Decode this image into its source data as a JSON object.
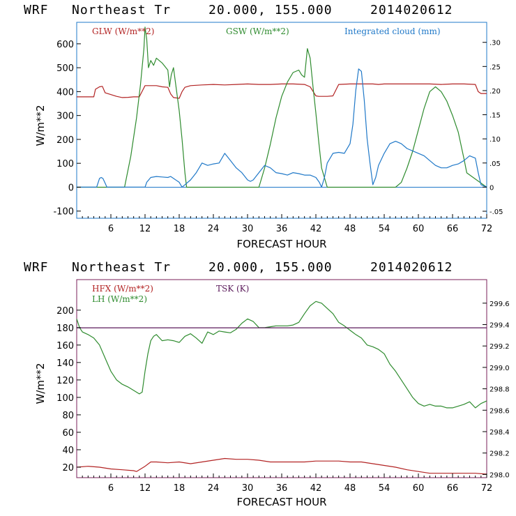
{
  "charts": [
    {
      "header": {
        "model": "WRF",
        "location": "Northeast Tr",
        "coords": "20.000, 155.000",
        "init": "2014020612"
      },
      "xlabel": "FORECAST HOUR",
      "ylabel": "W/m**2",
      "legend": [
        {
          "label": "GLW (W/m**2)",
          "color": "#b22222"
        },
        {
          "label": "GSW (W/m**2)",
          "color": "#2e8b2e"
        },
        {
          "label": "Integrated cloud (mm)",
          "color": "#1f78c8"
        }
      ],
      "y_ticks": [
        "-100",
        "0",
        "100",
        "200",
        "300",
        "400",
        "500",
        "600"
      ],
      "y2_ticks": [
        "-.05",
        "0",
        ".05",
        ".10",
        ".15",
        ".20",
        ".25",
        ".30"
      ],
      "x_ticks": [
        "6",
        "12",
        "18",
        "24",
        "30",
        "36",
        "42",
        "48",
        "54",
        "60",
        "66",
        "72"
      ]
    },
    {
      "header": {
        "model": "WRF",
        "location": "Northeast Tr",
        "coords": "20.000, 155.000",
        "init": "2014020612"
      },
      "xlabel": "FORECAST HOUR",
      "ylabel": "W/m**2",
      "legend": [
        {
          "label": "HFX (W/m**2)",
          "color": "#b22222"
        },
        {
          "label": "LH (W/m**2)",
          "color": "#2e8b2e"
        },
        {
          "label": "TSK (K)",
          "color": "#5a1a5a"
        }
      ],
      "y_ticks": [
        "20",
        "40",
        "60",
        "80",
        "100",
        "120",
        "140",
        "160",
        "180",
        "200"
      ],
      "y2_ticks": [
        "298.0",
        "298.2",
        "298.4",
        "298.6",
        "298.8",
        "299.0",
        "299.2",
        "299.4",
        "299.6"
      ],
      "x_ticks": [
        "6",
        "12",
        "18",
        "24",
        "30",
        "36",
        "42",
        "48",
        "54",
        "60",
        "66",
        "72"
      ]
    }
  ],
  "chart_data": [
    {
      "type": "line",
      "x_unit": "forecast hour",
      "xlim": [
        0,
        72
      ],
      "ylim": [
        -130,
        690
      ],
      "y2lim": [
        -0.0645,
        0.3415
      ],
      "series": [
        {
          "name": "GLW (W/m**2)",
          "axis": "left",
          "color": "#b22222",
          "x": [
            0,
            3,
            3.3,
            4,
            4.5,
            5,
            7,
            8,
            9,
            10,
            11,
            12,
            13,
            14,
            15,
            16,
            16.5,
            17,
            18,
            18.5,
            19,
            20,
            22,
            24,
            26,
            28,
            30,
            32,
            34,
            36,
            38,
            40,
            41,
            42,
            42.5,
            43,
            44,
            45,
            46,
            48,
            50,
            52,
            53,
            54,
            56,
            58,
            60,
            62,
            64,
            66,
            68,
            70,
            70.5,
            71,
            72
          ],
          "y": [
            378,
            378,
            410,
            420,
            422,
            395,
            380,
            375,
            376,
            378,
            378,
            425,
            425,
            425,
            420,
            418,
            390,
            375,
            372,
            400,
            418,
            425,
            428,
            430,
            428,
            430,
            432,
            430,
            430,
            432,
            432,
            430,
            420,
            382,
            380,
            380,
            380,
            382,
            430,
            432,
            432,
            432,
            430,
            432,
            432,
            432,
            432,
            432,
            430,
            432,
            432,
            430,
            400,
            392,
            392
          ]
        },
        {
          "name": "GSW (W/m**2)",
          "axis": "left",
          "color": "#2e8b2e",
          "x": [
            0,
            8.4,
            9.5,
            10.5,
            11.2,
            11.8,
            12,
            12.3,
            12.6,
            13,
            13.5,
            14,
            15,
            16,
            16.3,
            16.6,
            17,
            17.5,
            18,
            18.5,
            19,
            19.3,
            24,
            32,
            33,
            34,
            35,
            36,
            37,
            38,
            39,
            39.5,
            40,
            40.5,
            41,
            41.5,
            42,
            42.5,
            43,
            44,
            56,
            57,
            58,
            59,
            60,
            61,
            62,
            63,
            64,
            65,
            66,
            67,
            68,
            68.5,
            72
          ],
          "y": [
            0,
            0,
            130,
            290,
            430,
            580,
            670,
            620,
            500,
            530,
            510,
            540,
            520,
            490,
            420,
            470,
            500,
            410,
            320,
            200,
            60,
            0,
            0,
            0,
            80,
            180,
            290,
            380,
            440,
            480,
            490,
            470,
            460,
            580,
            540,
            420,
            310,
            190,
            80,
            0,
            0,
            20,
            80,
            150,
            240,
            330,
            400,
            420,
            400,
            360,
            300,
            230,
            120,
            60,
            0
          ]
        },
        {
          "name": "Integrated cloud (mm)",
          "axis": "right",
          "color": "#1f78c8",
          "x": [
            0,
            3.5,
            4,
            4.3,
            4.6,
            5,
            5.3,
            12,
            12.3,
            13,
            14,
            15,
            16,
            16.5,
            18,
            18.5,
            19,
            20,
            21,
            22,
            23,
            24,
            25,
            26,
            27,
            28,
            29,
            30,
            30.5,
            31,
            32,
            33,
            34,
            35,
            36,
            37,
            38,
            39,
            40,
            41,
            42,
            42.6,
            43,
            43.5,
            44,
            45,
            46,
            47,
            48,
            48.5,
            49,
            49.5,
            50,
            50.5,
            51,
            51.5,
            52,
            52.5,
            53,
            54,
            55,
            56,
            57,
            58,
            59,
            60,
            61,
            62,
            63,
            64,
            65,
            66,
            67,
            68,
            69,
            70,
            70.5,
            71,
            72
          ],
          "y": [
            0,
            0,
            0.018,
            0.02,
            0.018,
            0.008,
            0,
            0,
            0.01,
            0.02,
            0.022,
            0.021,
            0.02,
            0.022,
            0.01,
            0,
            0.005,
            0.015,
            0.03,
            0.05,
            0.045,
            0.048,
            0.05,
            0.07,
            0.055,
            0.04,
            0.03,
            0.015,
            0.012,
            0.015,
            0.03,
            0.045,
            0.04,
            0.03,
            0.028,
            0.025,
            0.03,
            0.028,
            0.025,
            0.025,
            0.02,
            0.01,
            0,
            0.02,
            0.05,
            0.07,
            0.072,
            0.07,
            0.09,
            0.13,
            0.2,
            0.245,
            0.24,
            0.18,
            0.1,
            0.05,
            0.005,
            0.02,
            0.045,
            0.07,
            0.09,
            0.095,
            0.09,
            0.08,
            0.075,
            0.07,
            0.065,
            0.055,
            0.045,
            0.04,
            0.04,
            0.045,
            0.048,
            0.055,
            0.065,
            0.06,
            0.03,
            0.005,
            0
          ]
        }
      ]
    },
    {
      "type": "line",
      "x_unit": "forecast hour",
      "xlim": [
        0,
        72
      ],
      "ylim": [
        8,
        235
      ],
      "y2lim": [
        297.97,
        299.82
      ],
      "series": [
        {
          "name": "HFX (W/m**2)",
          "axis": "left",
          "color": "#b22222",
          "x": [
            0,
            2,
            4,
            6,
            8,
            10,
            10.5,
            11,
            12,
            13,
            14,
            16,
            18,
            20,
            22,
            24,
            26,
            28,
            30,
            32,
            34,
            36,
            38,
            40,
            42,
            44,
            46,
            48,
            50,
            52,
            54,
            56,
            58,
            60,
            62,
            64,
            66,
            68,
            70,
            72
          ],
          "y": [
            20,
            21,
            20,
            18,
            17,
            16,
            15,
            17,
            21,
            26,
            26,
            25,
            26,
            24,
            26,
            28,
            30,
            29,
            29,
            28,
            26,
            26,
            26,
            26,
            27,
            27,
            27,
            26,
            26,
            24,
            22,
            20,
            17,
            15,
            13,
            13,
            13,
            13,
            13,
            12
          ]
        },
        {
          "name": "LH (W/m**2)",
          "axis": "left",
          "color": "#2e8b2e",
          "x": [
            0,
            0.5,
            1,
            2,
            3,
            4,
            5,
            6,
            7,
            8,
            9,
            10,
            11,
            11.5,
            12,
            12.5,
            13,
            13.5,
            14,
            15,
            16,
            17,
            18,
            19,
            20,
            21,
            22,
            23,
            24,
            25,
            26,
            27,
            28,
            29,
            30,
            31,
            32,
            33,
            34,
            35,
            36,
            37,
            38,
            39,
            40,
            41,
            42,
            43,
            44,
            45,
            46,
            47,
            48,
            49,
            50,
            51,
            52,
            53,
            54,
            55,
            56,
            57,
            58,
            59,
            60,
            61,
            62,
            63,
            64,
            65,
            66,
            67,
            68,
            69,
            70,
            71,
            72
          ],
          "y": [
            190,
            180,
            175,
            172,
            168,
            160,
            145,
            130,
            120,
            115,
            112,
            108,
            104,
            106,
            130,
            150,
            165,
            170,
            172,
            165,
            166,
            165,
            163,
            170,
            173,
            168,
            162,
            175,
            172,
            176,
            175,
            174,
            178,
            185,
            190,
            187,
            180,
            180,
            181,
            182,
            182,
            182,
            183,
            186,
            196,
            205,
            210,
            208,
            202,
            196,
            186,
            182,
            177,
            172,
            168,
            160,
            158,
            155,
            150,
            138,
            130,
            120,
            110,
            100,
            93,
            90,
            92,
            90,
            90,
            88,
            88,
            90,
            92,
            95,
            88,
            93,
            96
          ]
        },
        {
          "name": "TSK (K)",
          "axis": "right",
          "color": "#5a1a5a",
          "x": [
            0,
            72
          ],
          "y": [
            299.37,
            299.37
          ]
        }
      ]
    }
  ]
}
